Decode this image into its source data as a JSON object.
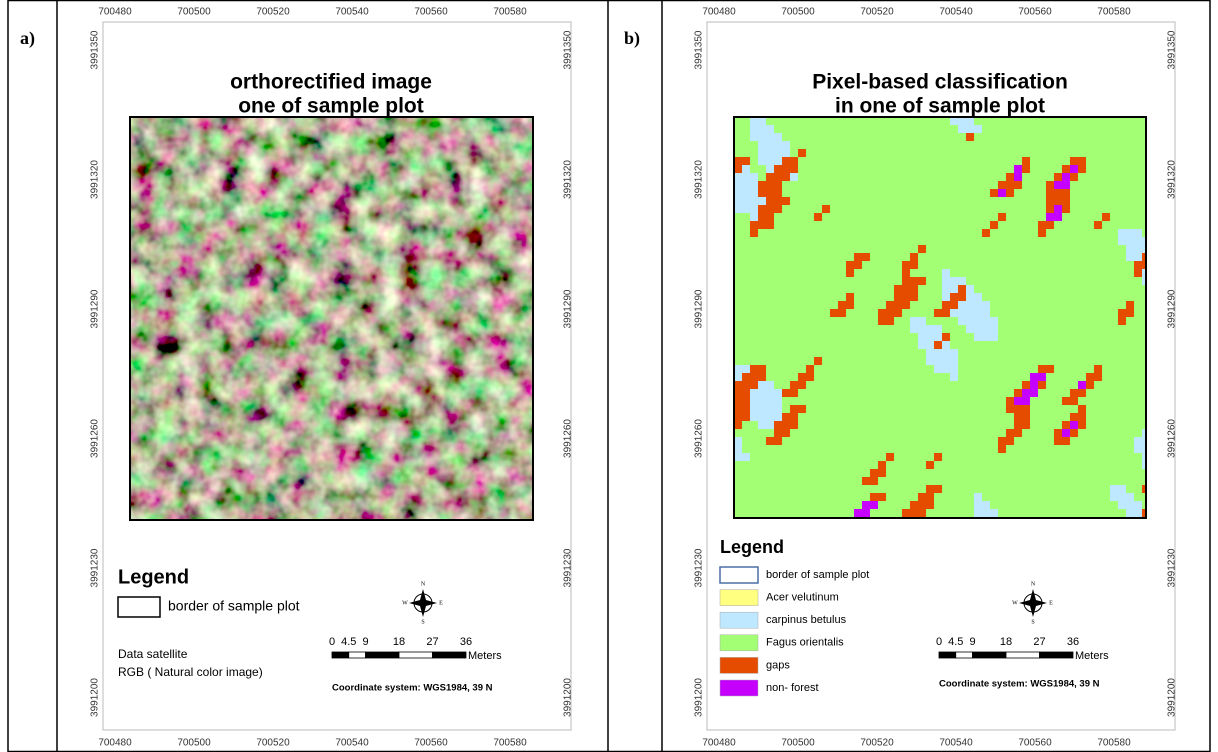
{
  "panels": [
    {
      "label": "a)",
      "title": [
        "orthorectified image",
        "one of sample plot"
      ],
      "x_ticks": [
        700480,
        700500,
        700520,
        700540,
        700560,
        700580
      ],
      "y_ticks": [
        3991350,
        3991320,
        3991290,
        3991260,
        3991230,
        3991200
      ],
      "legend": {
        "title": "Legend",
        "items": [
          {
            "label": "border of sample plot",
            "color": "#ffffff"
          }
        ]
      },
      "note": [
        "Data satellite",
        "RGB ( Natural color image)"
      ],
      "scale": {
        "labels": [
          0,
          4.5,
          9,
          18,
          27,
          36
        ],
        "unit": "Meters"
      },
      "coordinate_system": "Coordinate system: WGS1984, 39 N",
      "north": {
        "n": "N",
        "e": "E",
        "s": "S",
        "w": "W"
      }
    },
    {
      "label": "b)",
      "title": [
        "Pixel-based classification",
        "in one of sample plot"
      ],
      "x_ticks": [
        700480,
        700500,
        700520,
        700540,
        700560,
        700580
      ],
      "y_ticks": [
        3991350,
        3991320,
        3991290,
        3991260,
        3991230,
        3991200
      ],
      "legend": {
        "title": "Legend",
        "items": [
          {
            "label": "border of sample plot",
            "color": "#ffffff"
          },
          {
            "label": "Acer velutinum",
            "color": "#ffff80"
          },
          {
            "label": "carpinus betulus",
            "color": "#bee8ff"
          },
          {
            "label": "Fagus orientalis",
            "color": "#a3ff73"
          },
          {
            "label": "gaps",
            "color": "#e64c00"
          },
          {
            "label": "non- forest",
            "color": "#c500ff"
          }
        ]
      },
      "scale": {
        "labels": [
          0,
          4.5,
          9,
          18,
          27,
          36
        ],
        "unit": "Meters"
      },
      "coordinate_system": "Coordinate system: WGS1984, 39 N",
      "north": {
        "n": "N",
        "e": "E",
        "s": "S",
        "w": "W"
      }
    }
  ]
}
